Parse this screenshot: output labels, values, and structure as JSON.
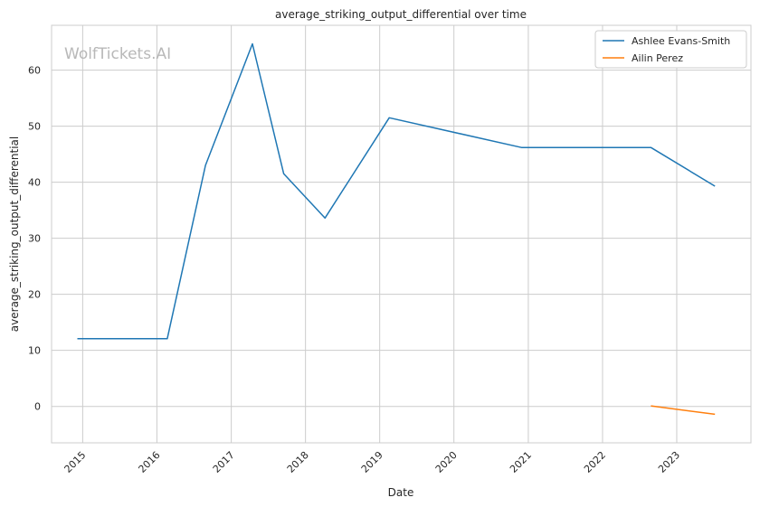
{
  "chart_data": {
    "type": "line",
    "title": "average_striking_output_differential over time",
    "xlabel": "Date",
    "ylabel": "average_striking_output_differential",
    "watermark": "WolfTickets.AI",
    "x_tick_labels": [
      "2015",
      "2016",
      "2017",
      "2018",
      "2019",
      "2020",
      "2021",
      "2022",
      "2023"
    ],
    "y_tick_labels": [
      "0",
      "10",
      "20",
      "30",
      "40",
      "50",
      "60"
    ],
    "y_ticks": [
      0,
      10,
      20,
      30,
      40,
      50,
      60
    ],
    "xlim": [
      "2014-08-01",
      "2024-01-01"
    ],
    "ylim": [
      -6.5,
      68
    ],
    "grid": true,
    "legend_position": "top-right",
    "series": [
      {
        "name": "Ashlee Evans-Smith",
        "color": "#1f77b4",
        "points": [
          {
            "x": "2014-12-06",
            "y": 12.1
          },
          {
            "x": "2016-02-21",
            "y": 12.1
          },
          {
            "x": "2016-08-27",
            "y": 43.0
          },
          {
            "x": "2017-04-15",
            "y": 64.7
          },
          {
            "x": "2017-09-16",
            "y": 41.5
          },
          {
            "x": "2018-04-07",
            "y": 33.6
          },
          {
            "x": "2019-02-17",
            "y": 51.5
          },
          {
            "x": "2020-11-28",
            "y": 46.2
          },
          {
            "x": "2022-08-27",
            "y": 46.2
          },
          {
            "x": "2023-07-08",
            "y": 39.3
          }
        ]
      },
      {
        "name": "Ailin Perez",
        "color": "#ff7f0e",
        "points": [
          {
            "x": "2022-08-27",
            "y": 0.1
          },
          {
            "x": "2023-07-08",
            "y": -1.4
          }
        ]
      }
    ]
  }
}
